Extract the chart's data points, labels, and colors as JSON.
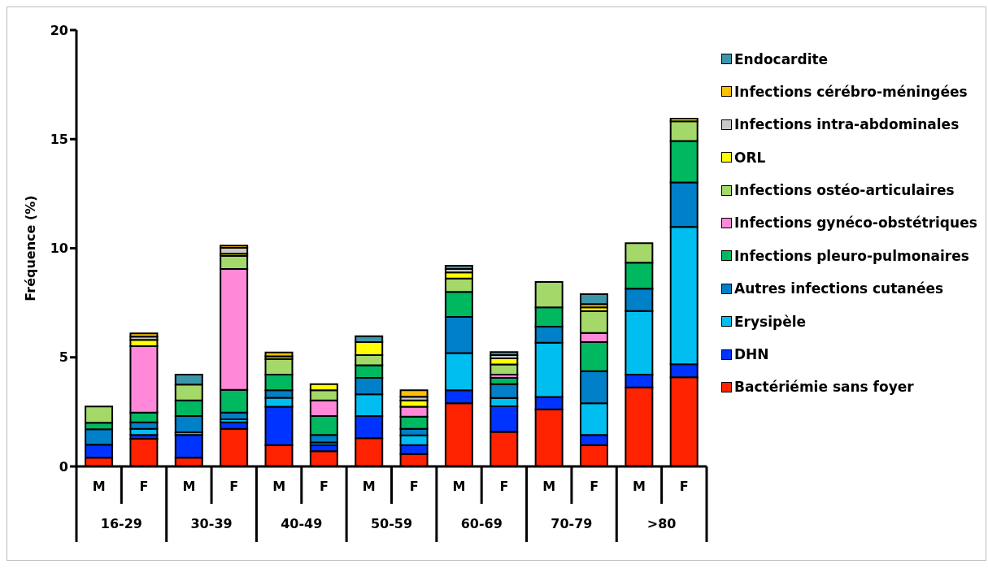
{
  "chart_data": {
    "type": "bar",
    "stacked": true,
    "ylabel": "Fréquence (%)",
    "categories": [
      "M",
      "F",
      "M",
      "F",
      "M",
      "F",
      "M",
      "F",
      "M",
      "F",
      "M",
      "F",
      "M",
      "F"
    ],
    "annotations": [
      "16-29",
      "30-39",
      "40-49",
      "50-59",
      "60-69",
      "70-79",
      ">80"
    ],
    "ylim": [
      0,
      20
    ],
    "yticks": [
      0,
      5,
      10,
      15,
      20
    ],
    "grid": false,
    "legend": "right",
    "series": [
      {
        "name": "Bactériémie sans foyer",
        "color": "#ff2200",
        "values": [
          0.4,
          1.27,
          0.4,
          1.72,
          0.98,
          0.7,
          1.29,
          0.57,
          2.9,
          1.58,
          2.62,
          0.98,
          3.62,
          4.09
        ]
      },
      {
        "name": "DHN",
        "color": "#0033ff",
        "values": [
          0.6,
          0.17,
          1.04,
          0.3,
          1.76,
          0.28,
          1.02,
          0.41,
          0.59,
          1.18,
          0.56,
          0.46,
          0.59,
          0.59
        ]
      },
      {
        "name": "Erysipèle",
        "color": "#00bff0",
        "values": [
          0,
          0.28,
          0.12,
          0.14,
          0.41,
          0.12,
          1.0,
          0.44,
          1.71,
          0.38,
          2.49,
          1.46,
          2.91,
          6.3
        ]
      },
      {
        "name": "Autres infections cutanées",
        "color": "#0080c8",
        "values": [
          0.7,
          0.3,
          0.75,
          0.31,
          0.34,
          0.34,
          0.75,
          0.3,
          1.65,
          0.63,
          0.74,
          1.47,
          1.03,
          2.04
        ]
      },
      {
        "name": "Infections pleuro-pulmonaires",
        "color": "#00b860",
        "values": [
          0.3,
          0.45,
          0.72,
          1.04,
          0.72,
          0.87,
          0.58,
          0.56,
          1.15,
          0.29,
          0.88,
          1.33,
          1.19,
          1.9
        ]
      },
      {
        "name": "Infections gynéco-obstétriques",
        "color": "#ff88d8",
        "values": [
          0,
          3.04,
          0,
          5.54,
          0,
          0.72,
          0,
          0.46,
          0,
          0.15,
          0,
          0.42,
          0,
          0
        ]
      },
      {
        "name": "Infections ostéo-articulaires",
        "color": "#a4d868",
        "values": [
          0.75,
          0,
          0.72,
          0.6,
          0.72,
          0.46,
          0.46,
          0,
          0.61,
          0.46,
          1.16,
          1.0,
          0.89,
          0.9
        ]
      },
      {
        "name": "ORL",
        "color": "#ffff00",
        "values": [
          0,
          0.29,
          0,
          0.1,
          0.12,
          0.28,
          0.6,
          0.29,
          0.28,
          0.28,
          0,
          0.17,
          0,
          0.12
        ]
      },
      {
        "name": "Infections intra-abdominales",
        "color": "#c8c8c8",
        "values": [
          0,
          0.15,
          0,
          0.27,
          0,
          0,
          0,
          0.16,
          0.16,
          0.15,
          0,
          0,
          0,
          0
        ]
      },
      {
        "name": "Infections cérébro-méningées",
        "color": "#ffc000",
        "values": [
          0,
          0.15,
          0,
          0.1,
          0.17,
          0,
          0,
          0.3,
          0,
          0,
          0,
          0.15,
          0,
          0
        ]
      },
      {
        "name": "Endocardite",
        "color": "#3c96aa",
        "values": [
          0,
          0,
          0.46,
          0,
          0,
          0,
          0.27,
          0,
          0.15,
          0.14,
          0,
          0.46,
          0,
          0
        ]
      }
    ]
  }
}
